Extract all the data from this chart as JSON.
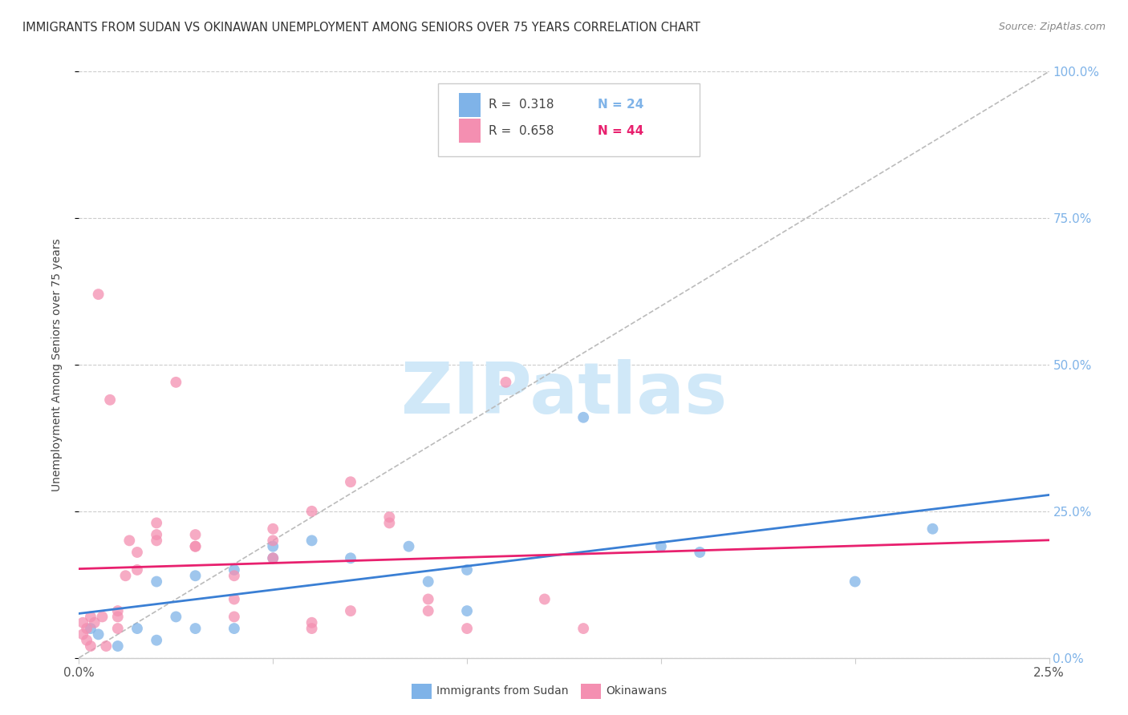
{
  "title": "IMMIGRANTS FROM SUDAN VS OKINAWAN UNEMPLOYMENT AMONG SENIORS OVER 75 YEARS CORRELATION CHART",
  "source": "Source: ZipAtlas.com",
  "ylabel": "Unemployment Among Seniors over 75 years",
  "legend_blue_r": "0.318",
  "legend_blue_n": "24",
  "legend_pink_r": "0.658",
  "legend_pink_n": "44",
  "legend_blue_label": "Immigrants from Sudan",
  "legend_pink_label": "Okinawans",
  "blue_color": "#7fb3e8",
  "pink_color": "#f48fb1",
  "trend_blue": "#3a7fd4",
  "trend_pink": "#e8206e",
  "ref_line_color": "#bbbbbb",
  "watermark": "ZIPatlas",
  "watermark_color": "#d0e8f8",
  "title_color": "#333333",
  "right_axis_color": "#7fb3e8",
  "background": "#ffffff",
  "xlim": [
    0.0,
    0.025
  ],
  "ylim": [
    0.0,
    1.0
  ],
  "right_yticks": [
    0.0,
    0.25,
    0.5,
    0.75,
    1.0
  ],
  "right_yticklabels": [
    "0.0%",
    "25.0%",
    "50.0%",
    "75.0%",
    "100.0%"
  ],
  "blue_x": [
    0.0003,
    0.0005,
    0.001,
    0.0015,
    0.002,
    0.002,
    0.0025,
    0.003,
    0.003,
    0.004,
    0.004,
    0.005,
    0.005,
    0.006,
    0.007,
    0.0085,
    0.009,
    0.01,
    0.01,
    0.013,
    0.015,
    0.016,
    0.02,
    0.022
  ],
  "blue_y": [
    0.05,
    0.04,
    0.02,
    0.05,
    0.03,
    0.13,
    0.07,
    0.14,
    0.05,
    0.15,
    0.05,
    0.19,
    0.17,
    0.2,
    0.17,
    0.19,
    0.13,
    0.15,
    0.08,
    0.41,
    0.19,
    0.18,
    0.13,
    0.22
  ],
  "pink_x": [
    0.0001,
    0.0001,
    0.0002,
    0.0002,
    0.0003,
    0.0003,
    0.0004,
    0.0005,
    0.0006,
    0.0007,
    0.0008,
    0.001,
    0.001,
    0.001,
    0.0012,
    0.0013,
    0.0015,
    0.0015,
    0.002,
    0.002,
    0.002,
    0.0025,
    0.003,
    0.003,
    0.003,
    0.004,
    0.004,
    0.004,
    0.005,
    0.005,
    0.005,
    0.006,
    0.006,
    0.006,
    0.007,
    0.007,
    0.008,
    0.008,
    0.009,
    0.009,
    0.01,
    0.011,
    0.012,
    0.013
  ],
  "pink_y": [
    0.04,
    0.06,
    0.03,
    0.05,
    0.02,
    0.07,
    0.06,
    0.62,
    0.07,
    0.02,
    0.44,
    0.07,
    0.08,
    0.05,
    0.14,
    0.2,
    0.15,
    0.18,
    0.2,
    0.23,
    0.21,
    0.47,
    0.21,
    0.19,
    0.19,
    0.14,
    0.1,
    0.07,
    0.17,
    0.22,
    0.2,
    0.25,
    0.06,
    0.05,
    0.3,
    0.08,
    0.24,
    0.23,
    0.08,
    0.1,
    0.05,
    0.47,
    0.1,
    0.05
  ]
}
